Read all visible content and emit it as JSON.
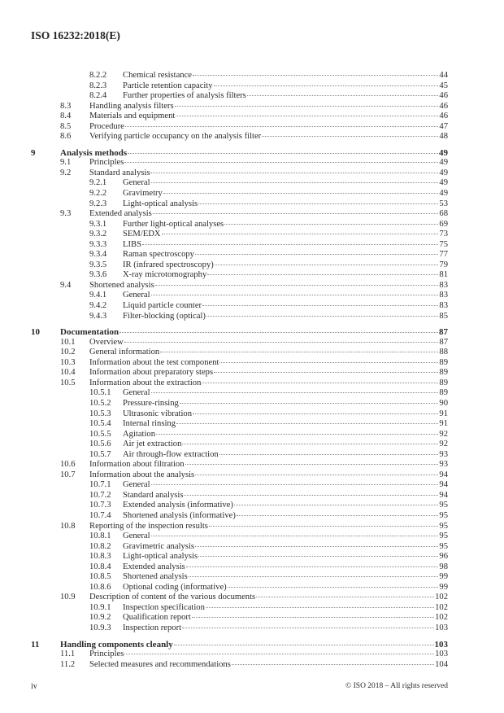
{
  "header": {
    "doc_id": "ISO 16232:2018(E)"
  },
  "toc": [
    {
      "level": 3,
      "num": "8.2.2",
      "title": "Chemical resistance",
      "page": "44"
    },
    {
      "level": 3,
      "num": "8.2.3",
      "title": "Particle retention capacity",
      "page": "45"
    },
    {
      "level": 3,
      "num": "8.2.4",
      "title": "Further properties of analysis filters",
      "page": "46"
    },
    {
      "level": 2,
      "num": "8.3",
      "title": "Handling analysis filters",
      "page": "46"
    },
    {
      "level": 2,
      "num": "8.4",
      "title": "Materials and equipment",
      "page": "46"
    },
    {
      "level": 2,
      "num": "8.5",
      "title": "Procedure",
      "page": "47"
    },
    {
      "level": 2,
      "num": "8.6",
      "title": "Verifying particle occupancy on the analysis filter",
      "page": "48"
    },
    {
      "level": 1,
      "num": "9",
      "title": "Analysis methods",
      "page": "49"
    },
    {
      "level": 2,
      "num": "9.1",
      "title": "Principles",
      "page": "49"
    },
    {
      "level": 2,
      "num": "9.2",
      "title": "Standard analysis",
      "page": "49"
    },
    {
      "level": 3,
      "num": "9.2.1",
      "title": "General",
      "page": "49"
    },
    {
      "level": 3,
      "num": "9.2.2",
      "title": "Gravimetry",
      "page": "49"
    },
    {
      "level": 3,
      "num": "9.2.3",
      "title": "Light-optical analysis",
      "page": "53"
    },
    {
      "level": 2,
      "num": "9.3",
      "title": "Extended analysis",
      "page": "68"
    },
    {
      "level": 3,
      "num": "9.3.1",
      "title": "Further light-optical analyses",
      "page": "69"
    },
    {
      "level": 3,
      "num": "9.3.2",
      "title": "SEM/EDX",
      "page": "73"
    },
    {
      "level": 3,
      "num": "9.3.3",
      "title": "LIBS",
      "page": "75"
    },
    {
      "level": 3,
      "num": "9.3.4",
      "title": "Raman spectroscopy",
      "page": "77"
    },
    {
      "level": 3,
      "num": "9.3.5",
      "title": "IR (infrared spectroscopy)",
      "page": "79"
    },
    {
      "level": 3,
      "num": "9.3.6",
      "title": "X-ray microtomography",
      "page": "81"
    },
    {
      "level": 2,
      "num": "9.4",
      "title": "Shortened analysis",
      "page": "83"
    },
    {
      "level": 3,
      "num": "9.4.1",
      "title": "General",
      "page": "83"
    },
    {
      "level": 3,
      "num": "9.4.2",
      "title": "Liquid particle counter",
      "page": "83"
    },
    {
      "level": 3,
      "num": "9.4.3",
      "title": "Filter-blocking (optical)",
      "page": "85"
    },
    {
      "level": 1,
      "num": "10",
      "title": "Documentation",
      "page": "87"
    },
    {
      "level": 2,
      "num": "10.1",
      "title": "Overview",
      "page": "87"
    },
    {
      "level": 2,
      "num": "10.2",
      "title": "General information",
      "page": "88"
    },
    {
      "level": 2,
      "num": "10.3",
      "title": "Information about the test component",
      "page": "89"
    },
    {
      "level": 2,
      "num": "10.4",
      "title": "Information about preparatory steps",
      "page": "89"
    },
    {
      "level": 2,
      "num": "10.5",
      "title": "Information about the extraction",
      "page": "89"
    },
    {
      "level": 3,
      "num": "10.5.1",
      "title": "General",
      "page": "89"
    },
    {
      "level": 3,
      "num": "10.5.2",
      "title": "Pressure-rinsing",
      "page": "90"
    },
    {
      "level": 3,
      "num": "10.5.3",
      "title": "Ultrasonic vibration",
      "page": "91"
    },
    {
      "level": 3,
      "num": "10.5.4",
      "title": "Internal rinsing",
      "page": "91"
    },
    {
      "level": 3,
      "num": "10.5.5",
      "title": "Agitation",
      "page": "92"
    },
    {
      "level": 3,
      "num": "10.5.6",
      "title": "Air jet extraction",
      "page": "92"
    },
    {
      "level": 3,
      "num": "10.5.7",
      "title": "Air through-flow extraction",
      "page": "93"
    },
    {
      "level": 2,
      "num": "10.6",
      "title": "Information about filtration",
      "page": "93"
    },
    {
      "level": 2,
      "num": "10.7",
      "title": "Information about the analysis",
      "page": "94"
    },
    {
      "level": 3,
      "num": "10.7.1",
      "title": "General",
      "page": "94"
    },
    {
      "level": 3,
      "num": "10.7.2",
      "title": "Standard analysis",
      "page": "94"
    },
    {
      "level": 3,
      "num": "10.7.3",
      "title": "Extended analysis (informative)",
      "page": "95"
    },
    {
      "level": 3,
      "num": "10.7.4",
      "title": "Shortened analysis (informative)",
      "page": "95"
    },
    {
      "level": 2,
      "num": "10.8",
      "title": "Reporting of the inspection results",
      "page": "95"
    },
    {
      "level": 3,
      "num": "10.8.1",
      "title": "General",
      "page": "95"
    },
    {
      "level": 3,
      "num": "10.8.2",
      "title": "Gravimetric analysis",
      "page": "95"
    },
    {
      "level": 3,
      "num": "10.8.3",
      "title": "Light-optical analysis",
      "page": "96"
    },
    {
      "level": 3,
      "num": "10.8.4",
      "title": "Extended analysis",
      "page": "98"
    },
    {
      "level": 3,
      "num": "10.8.5",
      "title": "Shortened analysis",
      "page": "99"
    },
    {
      "level": 3,
      "num": "10.8.6",
      "title": "Optional coding (informative)",
      "page": "99"
    },
    {
      "level": 2,
      "num": "10.9",
      "title": "Description of content of the various documents",
      "page": "102"
    },
    {
      "level": 3,
      "num": "10.9.1",
      "title": "Inspection specification",
      "page": "102"
    },
    {
      "level": 3,
      "num": "10.9.2",
      "title": "Qualification report",
      "page": "102"
    },
    {
      "level": 3,
      "num": "10.9.3",
      "title": "Inspection report",
      "page": "103"
    },
    {
      "level": 1,
      "num": "11",
      "title": "Handling components cleanly",
      "page": "103"
    },
    {
      "level": 2,
      "num": "11.1",
      "title": "Principles",
      "page": "103"
    },
    {
      "level": 2,
      "num": "11.2",
      "title": "Selected measures and recommendations",
      "page": "104"
    }
  ],
  "footer": {
    "page_number": "iv",
    "copyright": "© ISO 2018 – All rights reserved"
  }
}
